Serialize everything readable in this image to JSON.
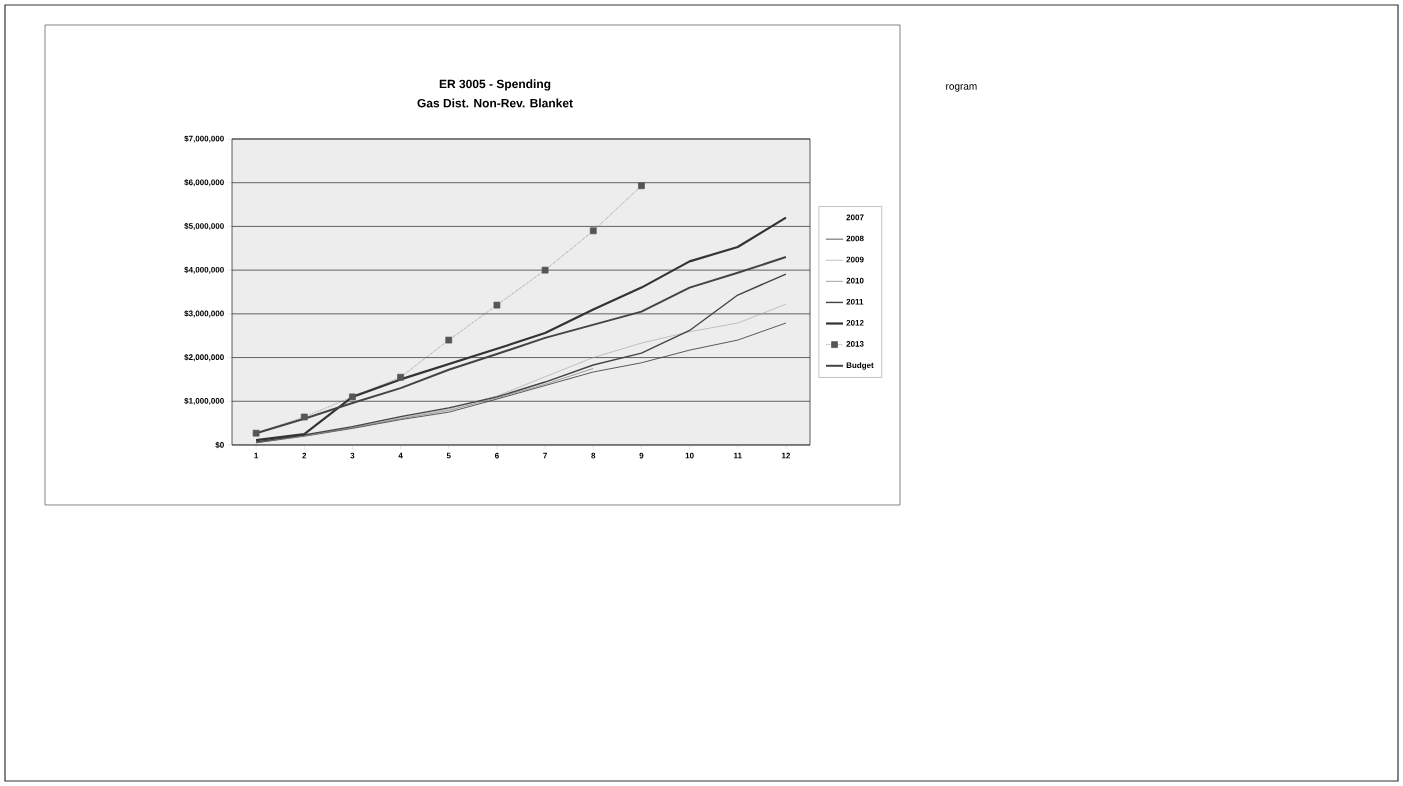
{
  "chart_data": {
    "type": "line",
    "title": "ER 3005 - Spending",
    "subtitle": "Gas Dist. Non-Rev. Blanket",
    "categories": [
      "1",
      "2",
      "3",
      "4",
      "5",
      "6",
      "7",
      "8",
      "9",
      "10",
      "11",
      "12"
    ],
    "series": [
      {
        "name": "2007",
        "values": [
          null,
          null,
          null,
          null,
          null,
          null,
          null,
          null,
          null,
          null,
          null,
          null
        ]
      },
      {
        "name": "2008",
        "color": "#333333",
        "values": [
          50000,
          200000,
          380000,
          580000,
          750000,
          1050000,
          1360000,
          1670000,
          1880000,
          2170000,
          2400000,
          2790000
        ]
      },
      {
        "name": "2009",
        "color": "#a0a0a0",
        "values": [
          60000,
          210000,
          400000,
          620000,
          820000,
          1120000,
          1560000,
          2000000,
          2330000,
          2590000,
          2790000,
          3220000
        ]
      },
      {
        "name": "2010",
        "color": "#666666",
        "values": [
          50000,
          220000,
          390000,
          600000,
          790000,
          1080000,
          1390000,
          1750000,
          null,
          null,
          null,
          null
        ]
      },
      {
        "name": "2011",
        "color": "#444444",
        "values": [
          70000,
          230000,
          420000,
          650000,
          850000,
          1100000,
          1440000,
          1830000,
          2100000,
          2620000,
          3430000,
          3910000
        ]
      },
      {
        "name": "2012",
        "color": "#333333",
        "values": [
          110000,
          250000,
          1100000,
          1500000,
          1850000,
          2200000,
          2560000,
          3100000,
          3600000,
          4200000,
          4530000,
          5200000
        ]
      },
      {
        "name": "2013",
        "color": "#555555",
        "marker": "square",
        "line_style": "dotted",
        "values": [
          270000,
          640000,
          1100000,
          1550000,
          2400000,
          3200000,
          4000000,
          4900000,
          5930000,
          null,
          null,
          null
        ]
      },
      {
        "name": "Budget",
        "color": "#444444",
        "values": [
          270000,
          600000,
          960000,
          1300000,
          1720000,
          2080000,
          2450000,
          2750000,
          3050000,
          3600000,
          3940000,
          4300000
        ]
      }
    ],
    "ylim": [
      0,
      7000000
    ],
    "yticks": [
      {
        "value": 0,
        "label": "$0"
      },
      {
        "value": 1000000,
        "label": "$1,000,000"
      },
      {
        "value": 2000000,
        "label": "$2,000,000"
      },
      {
        "value": 3000000,
        "label": "$3,000,000"
      },
      {
        "value": 4000000,
        "label": "$4,000,000"
      },
      {
        "value": 5000000,
        "label": "$5,000,000"
      },
      {
        "value": 6000000,
        "label": "$6,000,000"
      },
      {
        "value": 7000000,
        "label": "$7,000,000"
      }
    ],
    "grid": "y",
    "legend": "right",
    "marker": "none",
    "line_style": "solid",
    "annotations": [
      "rogram"
    ]
  }
}
